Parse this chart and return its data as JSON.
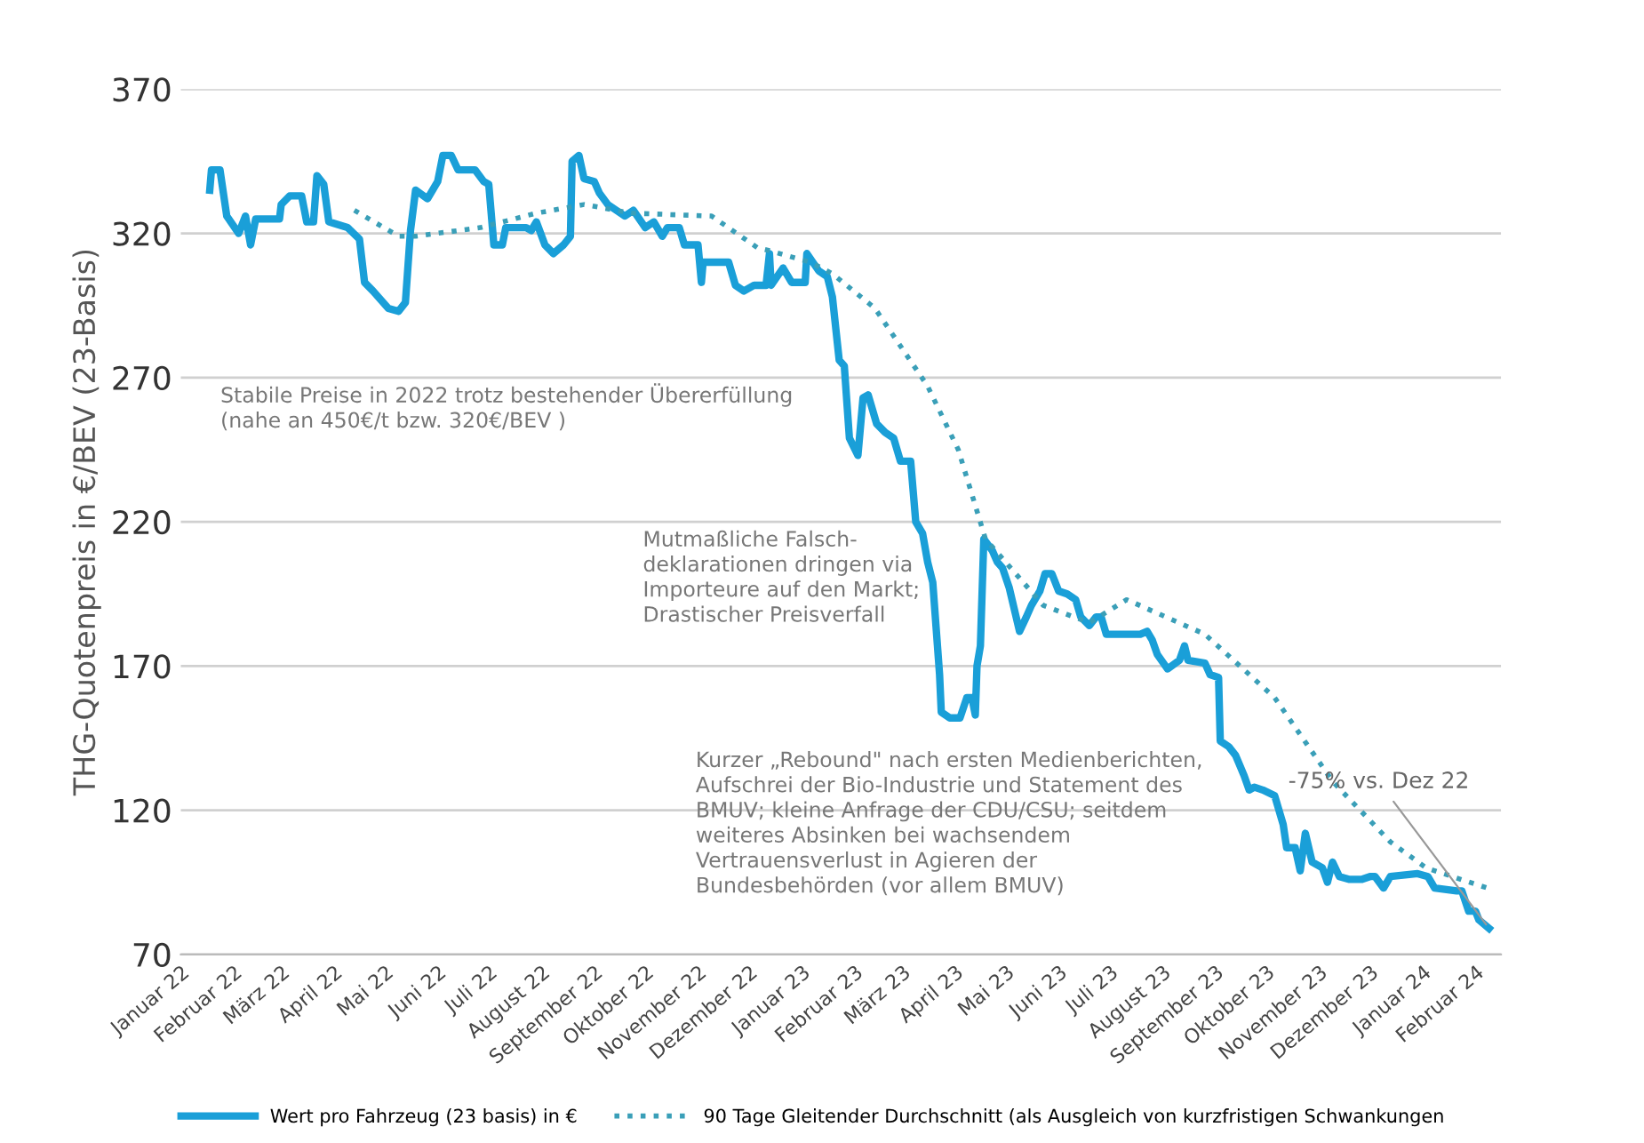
{
  "chart_data": {
    "type": "line",
    "ylabel": "THG-Quotenpreis in €/BEV (23-Basis)",
    "xlim": [
      "2022-01-01",
      "2024-02-16"
    ],
    "ylim": [
      70,
      370
    ],
    "yticks": [
      70,
      120,
      170,
      220,
      270,
      320,
      370
    ],
    "xticks": [
      {
        "value": "2022-01",
        "label": "Januar 22"
      },
      {
        "value": "2022-02",
        "label": "Februar 22"
      },
      {
        "value": "2022-03",
        "label": "März 22"
      },
      {
        "value": "2022-04",
        "label": "April 22"
      },
      {
        "value": "2022-05",
        "label": "Mai 22"
      },
      {
        "value": "2022-06",
        "label": "Juni 22"
      },
      {
        "value": "2022-07",
        "label": "Juli 22"
      },
      {
        "value": "2022-08",
        "label": "August 22"
      },
      {
        "value": "2022-09",
        "label": "September 22"
      },
      {
        "value": "2022-10",
        "label": "Oktober 22"
      },
      {
        "value": "2022-11",
        "label": "November 22"
      },
      {
        "value": "2022-12",
        "label": "Dezember 22"
      },
      {
        "value": "2023-01",
        "label": "Januar 23"
      },
      {
        "value": "2023-02",
        "label": "Februar 23"
      },
      {
        "value": "2023-03",
        "label": "März 23"
      },
      {
        "value": "2023-04",
        "label": "April 23"
      },
      {
        "value": "2023-05",
        "label": "Mai 23"
      },
      {
        "value": "2023-06",
        "label": "Juni 23"
      },
      {
        "value": "2023-07",
        "label": "Juli 23"
      },
      {
        "value": "2023-08",
        "label": "August 23"
      },
      {
        "value": "2023-09",
        "label": "September 23"
      },
      {
        "value": "2023-10",
        "label": "Oktober 23"
      },
      {
        "value": "2023-11",
        "label": "November 23"
      },
      {
        "value": "2023-12",
        "label": "Dezember 23"
      },
      {
        "value": "2024-01",
        "label": "Januar 24"
      },
      {
        "value": "2024-02",
        "label": "Februar 24"
      }
    ],
    "grid": "y",
    "legend": "bottom",
    "series": [
      {
        "name": "Wert pro Fahrzeug (23 basis) in €",
        "color": "#1a9fd8",
        "line_style": "solid",
        "x": [
          "2022-01-18",
          "2022-01-19",
          "2022-01-24",
          "2022-01-28",
          "2022-02-04",
          "2022-02-08",
          "2022-02-11",
          "2022-02-14",
          "2022-02-28",
          "2022-03-01",
          "2022-03-06",
          "2022-03-13",
          "2022-03-16",
          "2022-03-20",
          "2022-03-22",
          "2022-03-26",
          "2022-03-29",
          "2022-04-09",
          "2022-04-16",
          "2022-04-19",
          "2022-04-24",
          "2022-05-03",
          "2022-05-09",
          "2022-05-13",
          "2022-05-16",
          "2022-05-19",
          "2022-05-26",
          "2022-06-01",
          "2022-06-04",
          "2022-06-09",
          "2022-06-13",
          "2022-06-23",
          "2022-06-28",
          "2022-07-01",
          "2022-07-04",
          "2022-07-09",
          "2022-07-11",
          "2022-07-23",
          "2022-07-26",
          "2022-07-29",
          "2022-08-03",
          "2022-08-08",
          "2022-08-14",
          "2022-08-18",
          "2022-08-19",
          "2022-08-23",
          "2022-08-26",
          "2022-09-01",
          "2022-09-04",
          "2022-09-09",
          "2022-09-19",
          "2022-09-24",
          "2022-10-01",
          "2022-10-06",
          "2022-10-11",
          "2022-10-14",
          "2022-10-21",
          "2022-10-24",
          "2022-11-01",
          "2022-11-03",
          "2022-11-04",
          "2022-11-19",
          "2022-11-23",
          "2022-11-28",
          "2022-12-04",
          "2022-12-11",
          "2022-12-13",
          "2022-12-14",
          "2022-12-21",
          "2022-12-26",
          "2023-01-03",
          "2023-01-04",
          "2023-01-11",
          "2023-01-16",
          "2023-01-19",
          "2023-01-23",
          "2023-01-26",
          "2023-01-29",
          "2023-02-03",
          "2023-02-06",
          "2023-02-09",
          "2023-02-14",
          "2023-02-19",
          "2023-02-24",
          "2023-02-28",
          "2023-03-06",
          "2023-03-09",
          "2023-03-13",
          "2023-03-16",
          "2023-03-19",
          "2023-03-21",
          "2023-03-23",
          "2023-03-24",
          "2023-03-29",
          "2023-04-04",
          "2023-04-08",
          "2023-04-11",
          "2023-04-13",
          "2023-04-14",
          "2023-04-16",
          "2023-04-18",
          "2023-04-23",
          "2023-04-26",
          "2023-04-29",
          "2023-05-03",
          "2023-05-09",
          "2023-05-13",
          "2023-05-16",
          "2023-05-21",
          "2023-05-24",
          "2023-05-28",
          "2023-06-01",
          "2023-06-06",
          "2023-06-11",
          "2023-06-14",
          "2023-06-19",
          "2023-06-23",
          "2023-06-26",
          "2023-06-29",
          "2023-07-19",
          "2023-07-23",
          "2023-07-26",
          "2023-07-29",
          "2023-08-04",
          "2023-08-11",
          "2023-08-14",
          "2023-08-16",
          "2023-08-26",
          "2023-08-29",
          "2023-09-03",
          "2023-09-04",
          "2023-09-09",
          "2023-09-13",
          "2023-09-18",
          "2023-09-21",
          "2023-09-24",
          "2023-09-29",
          "2023-10-06",
          "2023-10-11",
          "2023-10-13",
          "2023-10-18",
          "2023-10-21",
          "2023-10-24",
          "2023-10-28",
          "2023-11-03",
          "2023-11-06",
          "2023-11-09",
          "2023-11-13",
          "2023-11-19",
          "2023-11-26",
          "2023-12-01",
          "2023-12-04",
          "2023-12-09",
          "2023-12-13",
          "2023-12-29",
          "2024-01-04",
          "2024-01-08",
          "2024-01-21",
          "2024-01-24",
          "2024-01-28",
          "2024-02-01",
          "2024-02-03",
          "2024-02-09"
        ],
        "values": [
          335,
          342,
          342,
          326,
          320,
          326,
          316,
          325,
          325,
          330,
          333,
          333,
          324,
          324,
          340,
          337,
          324,
          322,
          318,
          303,
          300,
          294,
          293,
          296,
          321,
          335,
          332,
          338,
          347,
          347,
          342,
          342,
          338,
          337,
          316,
          316,
          322,
          322,
          321,
          324,
          316,
          313,
          316,
          319,
          345,
          347,
          339,
          338,
          334,
          330,
          326,
          328,
          322,
          324,
          319,
          322,
          322,
          316,
          316,
          303,
          310,
          310,
          302,
          300,
          302,
          302,
          313,
          302,
          308,
          303,
          303,
          313,
          307,
          305,
          298,
          276,
          274,
          249,
          243,
          263,
          264,
          254,
          251,
          249,
          241,
          241,
          220,
          216,
          206,
          199,
          183,
          167,
          154,
          152,
          152,
          159,
          159,
          153,
          170,
          177,
          214,
          210,
          206,
          204,
          197,
          182,
          187,
          191,
          196,
          202,
          202,
          196,
          195,
          193,
          187,
          184,
          187,
          187,
          181,
          181,
          182,
          179,
          174,
          169,
          172,
          177,
          172,
          171,
          167,
          166,
          144,
          142,
          139,
          132,
          127,
          128,
          127,
          125,
          115,
          107,
          107,
          99,
          112,
          102,
          100,
          95,
          102,
          97,
          96,
          96,
          97,
          97,
          93,
          97,
          98,
          97,
          93,
          92,
          92,
          85,
          85,
          82,
          79
        ]
      },
      {
        "name": "90 Tage Gleitender Durchschnitt (als Ausgleich von kurzfristigen Schwankungen",
        "color": "#3a9fb8",
        "line_style": "dotted",
        "x": [
          "2022-04-13",
          "2022-05-09",
          "2022-05-19",
          "2022-06-26",
          "2022-07-29",
          "2022-08-26",
          "2022-09-23",
          "2022-11-09",
          "2022-12-06",
          "2022-12-13",
          "2023-01-06",
          "2023-01-19",
          "2023-02-13",
          "2023-03-16",
          "2023-04-03",
          "2023-04-19",
          "2023-05-23",
          "2023-06-19",
          "2023-07-11",
          "2023-08-26",
          "2023-10-06",
          "2023-11-09",
          "2023-12-13",
          "2024-01-03",
          "2024-02-08"
        ],
        "values": [
          328,
          319,
          319,
          322,
          327,
          330,
          327,
          326,
          315,
          314,
          310,
          306,
          294,
          267,
          245,
          214,
          191,
          185,
          193,
          181,
          159,
          130,
          109,
          100,
          93
        ]
      }
    ],
    "annotations": [
      "Stabile Preise in 2022 trotz bestehender Übererfüllung\n(nahe an 450€/t bzw. 320€/BEV )",
      "Mutmaßliche Falsch-\ndeklarationen dringen via\nImporteure auf den Markt;\nDrastischer Preisverfall",
      "Kurzer „Rebound\" nach ersten Medienberichten,\nAufschrei der Bio-Industrie und Statement des\nBMUV; kleine Anfrage der CDU/CSU; seitdem\nweiteres Absinken bei wachsendem\nVertrauensverlust in Agieren der\nBundesbehörden (vor allem BMUV)",
      {
        "text": "-75% vs. Dez 22",
        "x": "2024-02-09",
        "y": 79
      }
    ]
  }
}
